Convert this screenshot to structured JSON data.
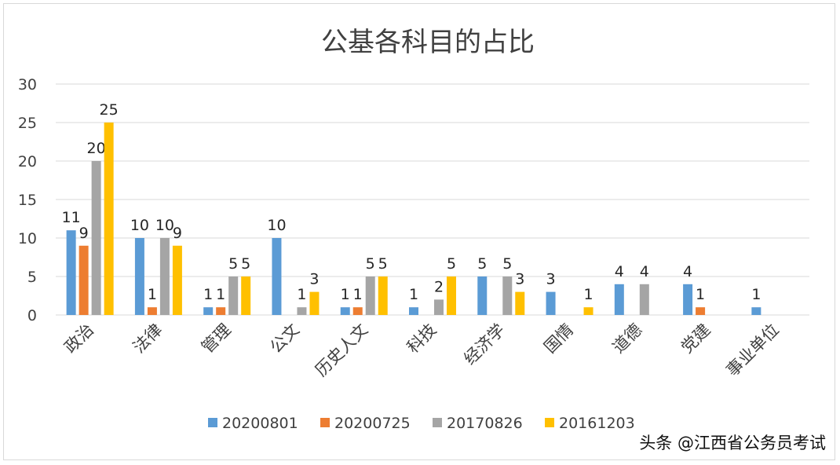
{
  "chart_data": {
    "type": "bar",
    "title": "公基各科目的占比",
    "categories": [
      "政治",
      "法律",
      "管理",
      "公文",
      "历史人文",
      "科技",
      "经济学",
      "国情",
      "道德",
      "党建",
      "事业单位"
    ],
    "series": [
      {
        "name": "20200801",
        "color": "#5b9bd5",
        "values": [
          11,
          10,
          1,
          10,
          1,
          1,
          5,
          3,
          4,
          4,
          1
        ]
      },
      {
        "name": "20200725",
        "color": "#ed7d31",
        "values": [
          9,
          1,
          1,
          null,
          1,
          null,
          null,
          null,
          null,
          1,
          null
        ]
      },
      {
        "name": "20170826",
        "color": "#a5a5a5",
        "values": [
          20,
          10,
          5,
          1,
          5,
          2,
          5,
          null,
          4,
          null,
          null
        ]
      },
      {
        "name": "20161203",
        "color": "#ffc000",
        "values": [
          25,
          9,
          5,
          3,
          5,
          5,
          3,
          1,
          null,
          null,
          null
        ]
      }
    ],
    "yticks": [
      0,
      5,
      10,
      15,
      20,
      25,
      30
    ],
    "ylim": [
      0,
      30
    ],
    "grid": true,
    "legend": "bottom",
    "xlabel": "",
    "ylabel": ""
  },
  "watermark": "头条 @江西省公务员考试"
}
